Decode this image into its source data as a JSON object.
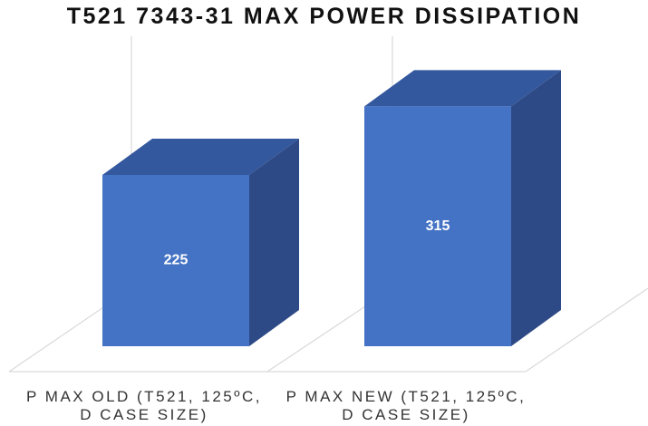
{
  "chart_data": {
    "type": "bar3d",
    "title": "T521 7343-31 MAX POWER DISSIPATION",
    "categories": [
      "P MAX OLD (T521, 125ºC, D CASE SIZE)",
      "P MAX NEW (T521, 125ºC, D CASE SIZE)"
    ],
    "values": [
      225,
      315
    ],
    "color": "#4472c4"
  }
}
